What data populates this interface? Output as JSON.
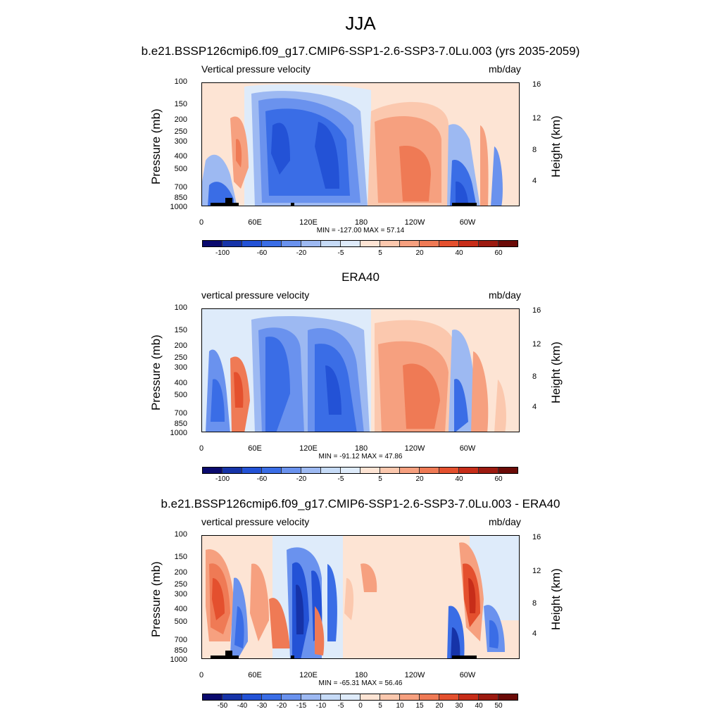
{
  "title": "JJA",
  "colors": {
    "scale_a": [
      "#0a0a6e",
      "#1633a8",
      "#2352d6",
      "#3a6de6",
      "#6a92ee",
      "#9db9f2",
      "#c6dbf7",
      "#deebfa",
      "#fde4d4",
      "#fbc8ae",
      "#f6a07f",
      "#ef7a55",
      "#e4502e",
      "#c72d19",
      "#9c1a10",
      "#6b0b08"
    ],
    "scale_b": [
      "#0a0a6e",
      "#1633a8",
      "#2352d6",
      "#3a6de6",
      "#6a92ee",
      "#9db9f2",
      "#c6dbf7",
      "#deebfa",
      "#fde4d4",
      "#fbc8ae",
      "#f6a07f",
      "#ef7a55",
      "#e4502e",
      "#c72d19",
      "#9c1a10",
      "#6b0b08"
    ]
  },
  "chart_data": [
    {
      "type": "heatmap",
      "title": "b.e21.BSSP126cmip6.f09_g17.CMIP6-SSP1-2.6-SSP3-7.0Lu.003 (yrs 2035-2059)",
      "left_label": "Vertical pressure velocity",
      "right_label": "mb/day",
      "ylabel": "Pressure (mb)",
      "ylabel_right": "Height (km)",
      "xticks": [
        "0",
        "60E",
        "120E",
        "180",
        "120W",
        "60W"
      ],
      "yticks": [
        "100",
        "150",
        "200",
        "250",
        "300",
        "400",
        "500",
        "700",
        "850",
        "1000"
      ],
      "height_ticks": [
        "16",
        "12",
        "8",
        "4"
      ],
      "min_max": "MIN = -127.00  MAX =  57.14",
      "colorbar_labels": [
        "-100",
        "-60",
        "-20",
        "-5",
        "5",
        "20",
        "40",
        "60"
      ],
      "colorbar_levels": 16
    },
    {
      "type": "heatmap",
      "title": "ERA40",
      "left_label": "vertical pressure velocity",
      "right_label": "mb/day",
      "ylabel": "Pressure (mb)",
      "ylabel_right": "Height (km)",
      "xticks": [
        "0",
        "60E",
        "120E",
        "180",
        "120W",
        "60W"
      ],
      "yticks": [
        "100",
        "150",
        "200",
        "250",
        "300",
        "400",
        "500",
        "700",
        "850",
        "1000"
      ],
      "height_ticks": [
        "16",
        "12",
        "8",
        "4"
      ],
      "min_max": "MIN = -91.12  MAX =  47.86",
      "colorbar_labels": [
        "-100",
        "-60",
        "-20",
        "-5",
        "5",
        "20",
        "40",
        "60"
      ],
      "colorbar_levels": 16
    },
    {
      "type": "heatmap",
      "title": "b.e21.BSSP126cmip6.f09_g17.CMIP6-SSP1-2.6-SSP3-7.0Lu.003 - ERA40",
      "left_label": "vertical pressure velocity",
      "right_label": "mb/day",
      "ylabel": "Pressure (mb)",
      "ylabel_right": "Height (km)",
      "xticks": [
        "0",
        "60E",
        "120E",
        "180",
        "120W",
        "60W"
      ],
      "yticks": [
        "100",
        "150",
        "200",
        "250",
        "300",
        "400",
        "500",
        "700",
        "850",
        "1000"
      ],
      "height_ticks": [
        "16",
        "12",
        "8",
        "4"
      ],
      "min_max": "MIN = -65.31  MAX =  56.46",
      "colorbar_labels": [
        "-50",
        "-40",
        "-30",
        "-20",
        "-15",
        "-10",
        "-5",
        "0",
        "5",
        "10",
        "15",
        "20",
        "30",
        "40",
        "50"
      ],
      "colorbar_levels": 16
    }
  ]
}
